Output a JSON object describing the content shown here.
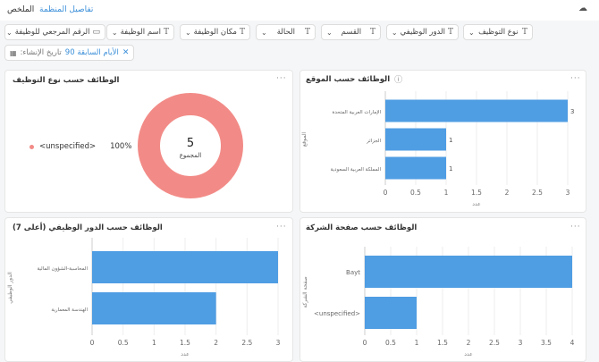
{
  "tabs": {
    "summary": "الملخص",
    "org_details": "تفاصيل المنظمة"
  },
  "filters": [
    {
      "label": "نوع التوظيف"
    },
    {
      "label": "الدور الوظيفي"
    },
    {
      "label": "القسم"
    },
    {
      "label": "الحالة"
    },
    {
      "label": "مكان الوظيفة"
    },
    {
      "label": "اسم الوظيفة"
    },
    {
      "label": "الرقم المرجعي للوظيفة"
    }
  ],
  "date_filter": {
    "label": "تاريخ الإنشاء:",
    "value": "الأيام السابقة 90"
  },
  "panels": {
    "employment_type": {
      "title": "الوظائف حسب نوع التوظيف",
      "legend_label": "<unspecified>",
      "legend_pct": "100%",
      "total_value": "5",
      "total_label": "المجموع"
    },
    "location": {
      "title": "الوظائف حسب الموقع"
    },
    "job_role": {
      "title": "الوظائف حسب الدور الوظيفي (أعلى 7)"
    },
    "company": {
      "title": "الوظائف حسب صفحة الشركة"
    }
  },
  "colors": {
    "bar": "#4f9de3",
    "donut": "#f28b87",
    "link": "#3b8fd9"
  },
  "chart_data": [
    {
      "id": "location",
      "type": "bar",
      "orientation": "horizontal",
      "categories": [
        "الإمارات العربية المتحدة",
        "الجزائر",
        "المملكة العربية السعودية"
      ],
      "values": [
        3,
        1,
        1
      ],
      "xlabel": "عدد",
      "ylabel": "الموقع",
      "xlim": [
        0,
        3
      ],
      "ticks": [
        "0",
        "0.5",
        "1",
        "1.5",
        "2",
        "2.5",
        "3"
      ],
      "data_labels": true
    },
    {
      "id": "job_role",
      "type": "bar",
      "orientation": "horizontal",
      "categories": [
        "المحاسبة-الشؤون المالية",
        "الهندسة المعمارية"
      ],
      "values": [
        3,
        2
      ],
      "xlabel": "عدد",
      "ylabel": "الدور الوظيفي",
      "xlim": [
        0,
        3
      ],
      "ticks": [
        "0",
        "0.5",
        "1",
        "1.5",
        "2",
        "2.5",
        "3"
      ],
      "data_labels": false
    },
    {
      "id": "company",
      "type": "bar",
      "orientation": "horizontal",
      "categories": [
        "Bayt",
        "<unspecified>"
      ],
      "values": [
        4,
        1
      ],
      "xlabel": "عدد",
      "ylabel": "صفحة الشركة",
      "xlim": [
        0,
        4
      ],
      "ticks": [
        "0",
        "0.5",
        "1",
        "1.5",
        "2",
        "2.5",
        "3",
        "3.5",
        "4"
      ],
      "data_labels": false
    },
    {
      "id": "employment_type",
      "type": "pie",
      "categories": [
        "<unspecified>"
      ],
      "values": [
        5
      ],
      "total": 5
    }
  ]
}
